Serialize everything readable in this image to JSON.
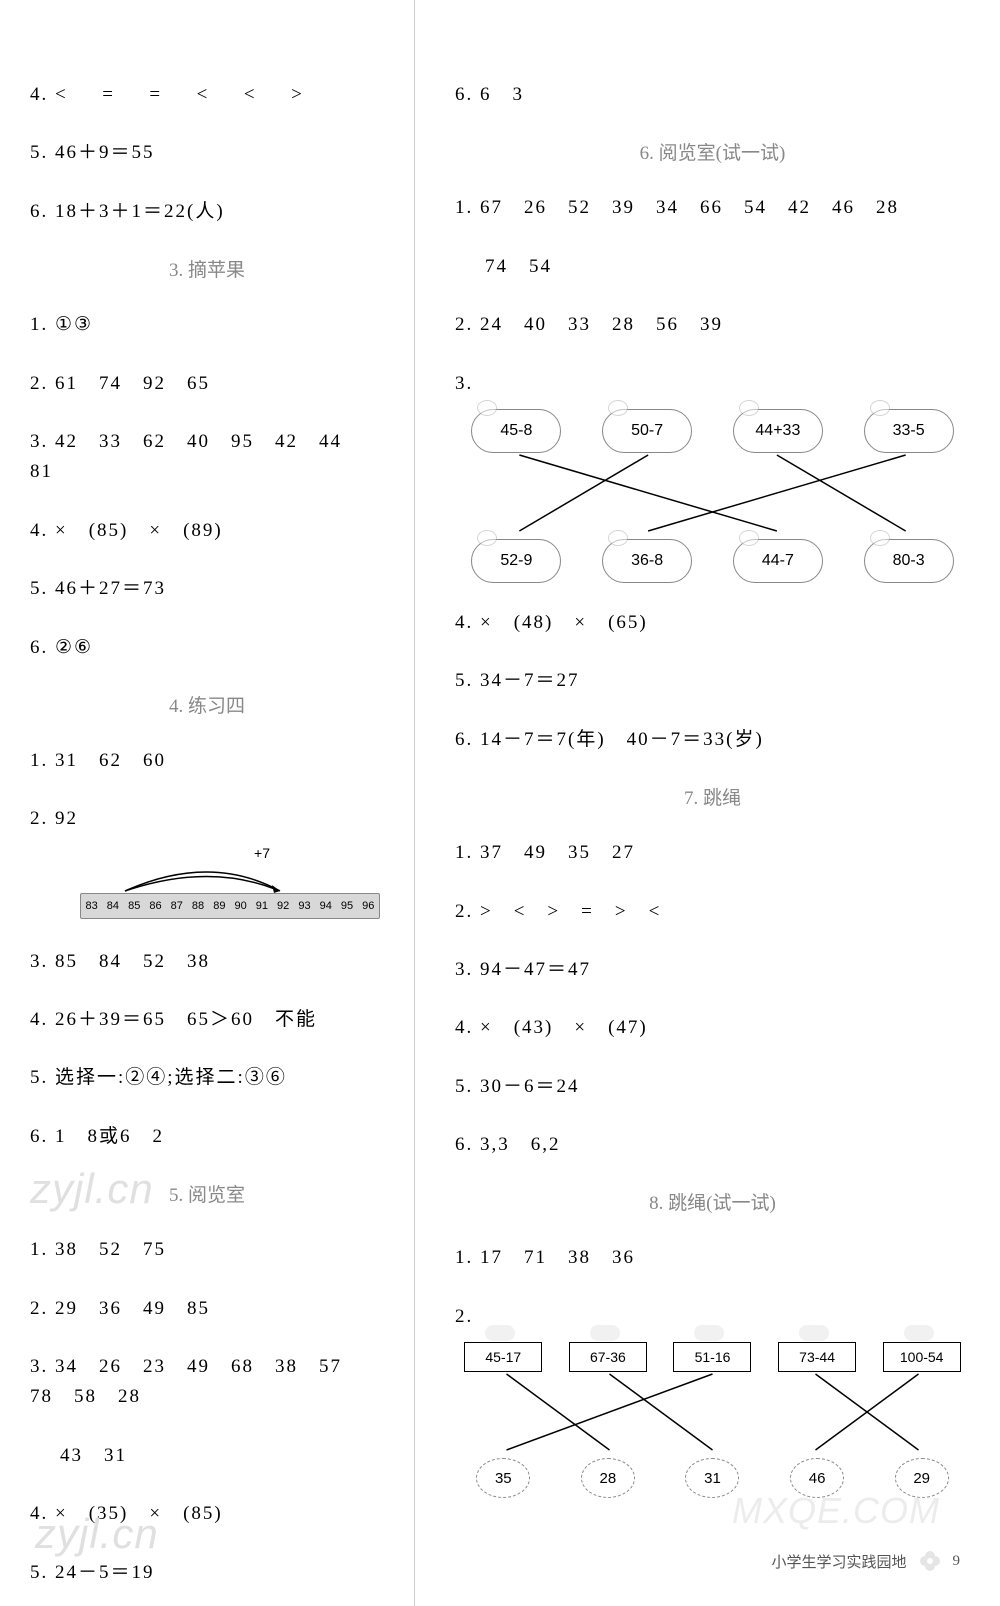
{
  "left": {
    "l1": "4. <   =   =   <   <   >",
    "l2": "5. 46＋9＝55",
    "l3": "6. 18＋3＋1＝22(人)",
    "s3_title": "3. 摘苹果",
    "s3_1": "1. ①③",
    "s3_2": "2. 61 74 92 65",
    "s3_3": "3. 42 33 62 40 95 42 44 81",
    "s3_4": "4. × (85) × (89)",
    "s3_5": "5. 46＋27＝73",
    "s3_6": "6. ②⑥",
    "s4_title": "4. 练习四",
    "s4_1": "1. 31 62 60",
    "s4_2": "2. 92",
    "s4_arc_label": "+7",
    "s4_ruler": [
      "83",
      "84",
      "85",
      "86",
      "87",
      "88",
      "89",
      "90",
      "91",
      "92",
      "93",
      "94",
      "95",
      "96"
    ],
    "s4_3": "3. 85 84 52 38",
    "s4_4": "4. 26＋39＝65 65＞60 不能",
    "s4_5": "5. 选择一:②④;选择二:③⑥",
    "s4_6": "6. 1 8或6 2",
    "s5_title": "5. 阅览室",
    "s5_1": "1. 38 52 75",
    "s5_2": "2. 29 36 49 85",
    "s5_3a": "3. 34 26 23 49 68 38 57 78 58 28",
    "s5_3b": "43 31",
    "s5_4": "4. × (35) × (85)",
    "s5_5": "5. 24－5＝19"
  },
  "right": {
    "r1": "6. 6 3",
    "s6_title": "6. 阅览室(试一试)",
    "s6_1a": "1. 67 26 52 39 34 66 54 42 46 28",
    "s6_1b": "74 54",
    "s6_2": "2. 24 40 33 28 56 39",
    "s6_3": "3.",
    "match1_top": [
      "45-8",
      "50-7",
      "44+33",
      "33-5"
    ],
    "match1_bot": [
      "52-9",
      "36-8",
      "44-7",
      "80-3"
    ],
    "match1_edges": [
      [
        0,
        2
      ],
      [
        1,
        0
      ],
      [
        2,
        3
      ],
      [
        3,
        1
      ]
    ],
    "s6_4": "4. × (48) × (65)",
    "s6_5": "5. 34－7＝27",
    "s6_6": "6. 14－7＝7(年) 40－7＝33(岁)",
    "s7_title": "7. 跳绳",
    "s7_1": "1. 37 49 35 27",
    "s7_2": "2. > < > = > <",
    "s7_3": "3. 94－47＝47",
    "s7_4": "4. × (43) × (47)",
    "s7_5": "5. 30－6＝24",
    "s7_6": "6. 3,3 6,2",
    "s8_title": "8. 跳绳(试一试)",
    "s8_1": "1. 17 71 38 36",
    "s8_2": "2.",
    "match2_top": [
      "45-17",
      "67-36",
      "51-16",
      "73-44",
      "100-54"
    ],
    "match2_bot": [
      "35",
      "28",
      "31",
      "46",
      "29"
    ],
    "match2_edges": [
      [
        0,
        1
      ],
      [
        1,
        2
      ],
      [
        2,
        0
      ],
      [
        3,
        4
      ],
      [
        4,
        3
      ]
    ]
  },
  "footer_text": "小学生学习实践园地",
  "footer_num": "9",
  "watermarks": {
    "a": "zyjl.cn",
    "b": "zyjl.cn",
    "c": "MXQE.COM"
  },
  "colors": {
    "section_title": "#888888",
    "text": "#000000",
    "ruler_bg": "#d8d8d8"
  }
}
